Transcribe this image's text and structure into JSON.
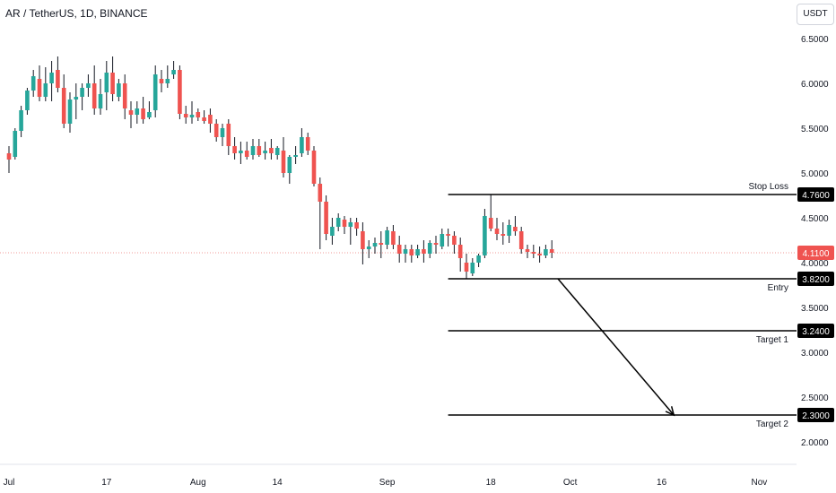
{
  "header": {
    "title": "AR / TetherUS, 1D, BINANCE",
    "currency_button": "USDT"
  },
  "colors": {
    "up": "#26a69a",
    "down": "#ef5350",
    "wick": "#131722",
    "line": "#000000",
    "price_tag_bg": "#000000",
    "current_price_bg": "#ef5350",
    "current_price_line": "#f19a97"
  },
  "chart_data": {
    "type": "candlestick",
    "symbol": "AR / TetherUS",
    "interval": "1D",
    "exchange": "BINANCE",
    "y_ticks": [
      "6.5000",
      "6.0000",
      "5.5000",
      "5.0000",
      "4.5000",
      "4.0000",
      "3.5000",
      "3.0000",
      "2.5000",
      "2.0000"
    ],
    "x_ticks": [
      {
        "label": "Jul",
        "day": 0
      },
      {
        "label": "17",
        "day": 16
      },
      {
        "label": "Aug",
        "day": 31
      },
      {
        "label": "14",
        "day": 44
      },
      {
        "label": "Sep",
        "day": 62
      },
      {
        "label": "18",
        "day": 79
      },
      {
        "label": "Oct",
        "day": 92
      },
      {
        "label": "16",
        "day": 107
      },
      {
        "label": "Nov",
        "day": 123
      }
    ],
    "current_price": {
      "value": 4.11,
      "label": "4.1100"
    },
    "levels": [
      {
        "name": "Stop Loss",
        "value": 4.76,
        "label": "4.7600",
        "from_day": 72
      },
      {
        "name": "Entry",
        "value": 3.82,
        "label": "3.8200",
        "from_day": 72
      },
      {
        "name": "Target 1",
        "value": 3.24,
        "label": "3.2400",
        "from_day": 72
      },
      {
        "name": "Target 2",
        "value": 2.3,
        "label": "2.3000",
        "from_day": 72
      }
    ],
    "arrow": {
      "from": {
        "day": 90,
        "price": 3.82
      },
      "to": {
        "day": 109,
        "price": 2.3
      }
    },
    "candles": [
      [
        5.22,
        5.3,
        5.0,
        5.15
      ],
      [
        5.18,
        5.5,
        5.15,
        5.47
      ],
      [
        5.47,
        5.75,
        5.4,
        5.7
      ],
      [
        5.7,
        5.95,
        5.65,
        5.92
      ],
      [
        5.92,
        6.15,
        5.85,
        6.08
      ],
      [
        6.05,
        6.2,
        5.8,
        5.85
      ],
      [
        5.85,
        6.18,
        5.8,
        6.0
      ],
      [
        6.0,
        6.25,
        5.8,
        6.12
      ],
      [
        6.15,
        6.3,
        5.9,
        5.95
      ],
      [
        5.95,
        6.1,
        5.5,
        5.55
      ],
      [
        5.55,
        5.9,
        5.45,
        5.82
      ],
      [
        5.82,
        6.0,
        5.6,
        5.85
      ],
      [
        5.85,
        6.0,
        5.7,
        5.95
      ],
      [
        5.95,
        6.1,
        5.85,
        6.0
      ],
      [
        6.0,
        6.2,
        5.65,
        5.72
      ],
      [
        5.72,
        6.05,
        5.65,
        5.88
      ],
      [
        5.9,
        6.25,
        5.7,
        6.12
      ],
      [
        6.12,
        6.3,
        5.8,
        5.88
      ],
      [
        5.85,
        6.05,
        5.8,
        6.0
      ],
      [
        6.0,
        6.1,
        5.6,
        5.72
      ],
      [
        5.7,
        5.8,
        5.5,
        5.65
      ],
      [
        5.65,
        5.8,
        5.55,
        5.72
      ],
      [
        5.72,
        5.85,
        5.55,
        5.6
      ],
      [
        5.62,
        5.8,
        5.6,
        5.68
      ],
      [
        5.7,
        6.2,
        5.62,
        6.1
      ],
      [
        6.05,
        6.15,
        5.9,
        6.0
      ],
      [
        6.0,
        6.2,
        5.95,
        6.05
      ],
      [
        6.1,
        6.25,
        6.05,
        6.15
      ],
      [
        6.15,
        6.2,
        5.6,
        5.66
      ],
      [
        5.66,
        5.75,
        5.55,
        5.62
      ],
      [
        5.62,
        5.8,
        5.55,
        5.65
      ],
      [
        5.68,
        5.72,
        5.58,
        5.62
      ],
      [
        5.62,
        5.7,
        5.55,
        5.58
      ],
      [
        5.65,
        5.72,
        5.45,
        5.55
      ],
      [
        5.55,
        5.6,
        5.35,
        5.4
      ],
      [
        5.4,
        5.55,
        5.3,
        5.5
      ],
      [
        5.55,
        5.6,
        5.2,
        5.3
      ],
      [
        5.3,
        5.4,
        5.15,
        5.22
      ],
      [
        5.22,
        5.35,
        5.1,
        5.25
      ],
      [
        5.25,
        5.35,
        5.15,
        5.18
      ],
      [
        5.2,
        5.38,
        5.15,
        5.3
      ],
      [
        5.3,
        5.38,
        5.18,
        5.2
      ],
      [
        5.22,
        5.35,
        5.15,
        5.25
      ],
      [
        5.28,
        5.38,
        5.15,
        5.22
      ],
      [
        5.2,
        5.3,
        5.15,
        5.28
      ],
      [
        5.25,
        5.4,
        4.95,
        5.0
      ],
      [
        5.0,
        5.2,
        4.88,
        5.18
      ],
      [
        5.18,
        5.3,
        5.1,
        5.2
      ],
      [
        5.22,
        5.5,
        5.18,
        5.4
      ],
      [
        5.4,
        5.45,
        5.2,
        5.25
      ],
      [
        5.25,
        5.3,
        4.85,
        4.88
      ],
      [
        4.88,
        4.95,
        4.15,
        4.68
      ],
      [
        4.68,
        4.75,
        4.25,
        4.32
      ],
      [
        4.3,
        4.5,
        4.2,
        4.4
      ],
      [
        4.4,
        4.55,
        4.35,
        4.5
      ],
      [
        4.48,
        4.52,
        4.32,
        4.4
      ],
      [
        4.4,
        4.5,
        4.2,
        4.45
      ],
      [
        4.45,
        4.5,
        4.3,
        4.38
      ],
      [
        4.35,
        4.45,
        3.98,
        4.15
      ],
      [
        4.15,
        4.25,
        4.05,
        4.18
      ],
      [
        4.18,
        4.28,
        4.1,
        4.22
      ],
      [
        4.22,
        4.35,
        4.05,
        4.2
      ],
      [
        4.2,
        4.4,
        4.15,
        4.36
      ],
      [
        4.35,
        4.42,
        4.15,
        4.2
      ],
      [
        4.2,
        4.3,
        4.0,
        4.1
      ],
      [
        4.1,
        4.2,
        4.0,
        4.15
      ],
      [
        4.15,
        4.2,
        4.0,
        4.08
      ],
      [
        4.08,
        4.2,
        4.05,
        4.15
      ],
      [
        4.15,
        4.25,
        4.0,
        4.1
      ],
      [
        4.1,
        4.25,
        4.05,
        4.22
      ],
      [
        4.22,
        4.3,
        4.1,
        4.2
      ],
      [
        4.18,
        4.38,
        4.15,
        4.32
      ],
      [
        4.32,
        4.38,
        4.18,
        4.3
      ],
      [
        4.3,
        4.35,
        4.1,
        4.2
      ],
      [
        4.2,
        4.28,
        3.9,
        4.05
      ],
      [
        4.0,
        4.1,
        3.82,
        3.9
      ],
      [
        3.88,
        4.05,
        3.85,
        4.0
      ],
      [
        4.0,
        4.1,
        3.95,
        4.08
      ],
      [
        4.08,
        4.6,
        4.05,
        4.52
      ],
      [
        4.5,
        4.76,
        4.35,
        4.38
      ],
      [
        4.38,
        4.5,
        4.25,
        4.32
      ],
      [
        4.32,
        4.45,
        4.2,
        4.3
      ],
      [
        4.3,
        4.48,
        4.22,
        4.42
      ],
      [
        4.4,
        4.52,
        4.3,
        4.35
      ],
      [
        4.35,
        4.4,
        4.1,
        4.15
      ],
      [
        4.15,
        4.2,
        4.05,
        4.12
      ],
      [
        4.12,
        4.2,
        4.05,
        4.1
      ],
      [
        4.1,
        4.18,
        4.0,
        4.08
      ],
      [
        4.08,
        4.2,
        4.05,
        4.15
      ],
      [
        4.15,
        4.25,
        4.05,
        4.11
      ]
    ]
  }
}
